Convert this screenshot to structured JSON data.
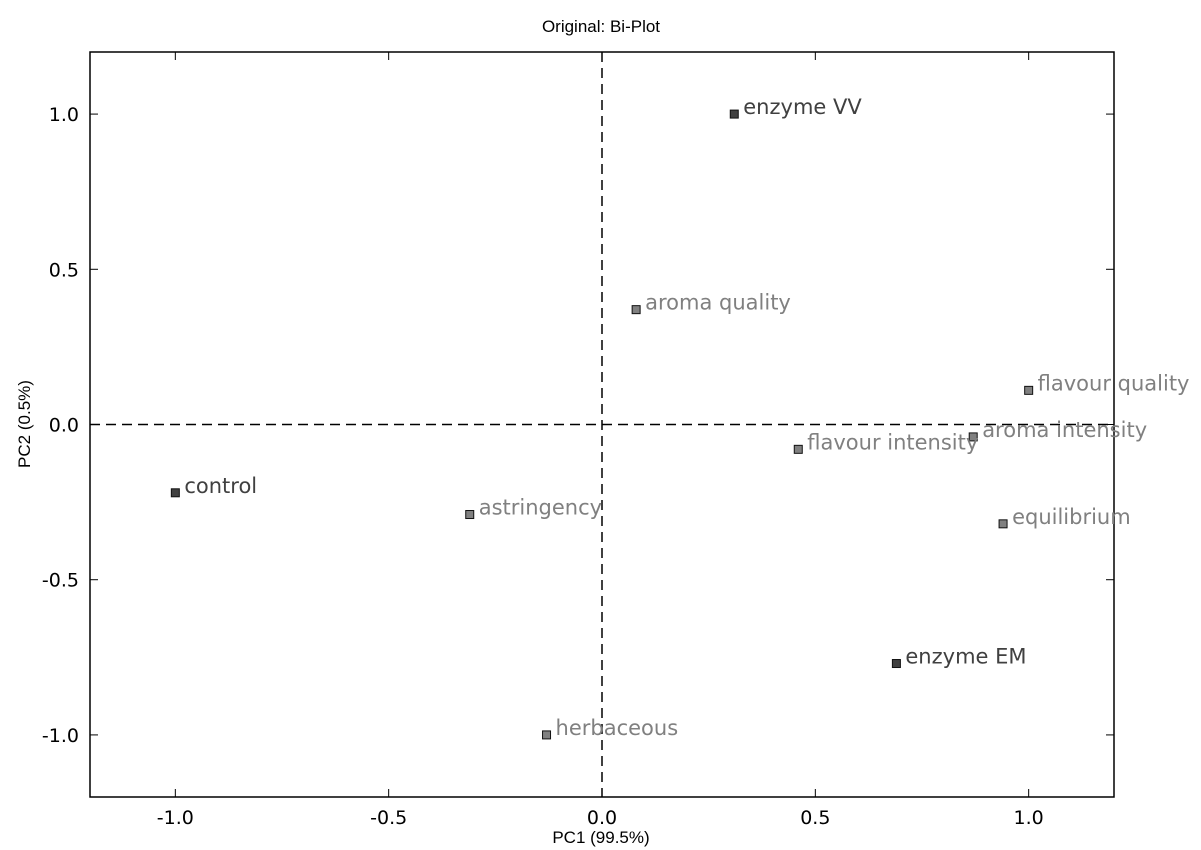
{
  "chart_data": {
    "type": "scatter",
    "title": "Original: Bi-Plot",
    "xlabel": "PC1 (99.5%)",
    "ylabel": "PC2 (0.5%)",
    "xlim": [
      -1.2,
      1.2
    ],
    "ylim": [
      -1.2,
      1.2
    ],
    "xticks": [
      -1.0,
      -0.5,
      0.0,
      0.5,
      1.0
    ],
    "yticks": [
      -1.0,
      -0.5,
      0.0,
      0.5,
      1.0
    ],
    "xtick_labels": [
      "-1.0",
      "-0.5",
      "0.0",
      "0.5",
      "1.0"
    ],
    "ytick_labels": [
      "-1.0",
      "-0.5",
      "0.0",
      "0.5",
      "1.0"
    ],
    "reference_lines": {
      "x": 0,
      "y": 0,
      "style": "dashed"
    },
    "grid": false,
    "series": [
      {
        "role": "samples",
        "marker_color": "#404040",
        "label_color": "#404040",
        "points": [
          {
            "label": "enzyme VV",
            "x": 0.31,
            "y": 1.0
          },
          {
            "label": "control",
            "x": -1.0,
            "y": -0.22
          },
          {
            "label": "enzyme EM",
            "x": 0.69,
            "y": -0.77
          }
        ]
      },
      {
        "role": "variables",
        "marker_color": "#808080",
        "label_color": "#808080",
        "points": [
          {
            "label": "aroma quality",
            "x": 0.08,
            "y": 0.37
          },
          {
            "label": "flavour quality",
            "x": 1.0,
            "y": 0.11
          },
          {
            "label": "aroma intensity",
            "x": 0.87,
            "y": -0.04
          },
          {
            "label": "flavour intensity",
            "x": 0.46,
            "y": -0.08
          },
          {
            "label": "astringency",
            "x": -0.31,
            "y": -0.29
          },
          {
            "label": "equilibrium",
            "x": 0.94,
            "y": -0.32
          },
          {
            "label": "herbaceous",
            "x": -0.13,
            "y": -1.0
          }
        ]
      }
    ]
  }
}
